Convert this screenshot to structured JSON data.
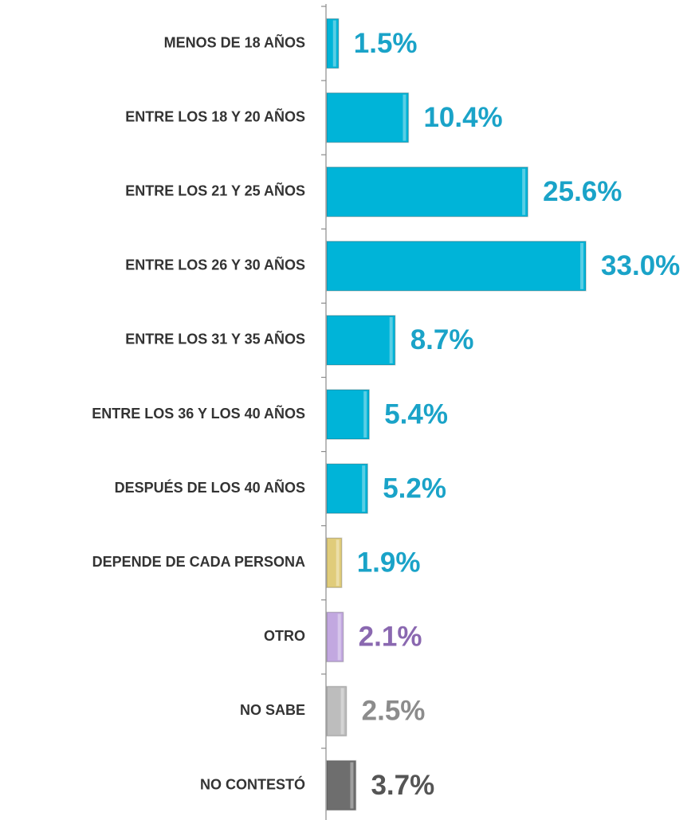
{
  "chart_data": {
    "type": "bar",
    "orientation": "horizontal",
    "categories": [
      "MENOS DE 18 AÑOS",
      "ENTRE LOS 18 Y 20 AÑOS",
      "ENTRE LOS 21 Y 25 AÑOS",
      "ENTRE LOS 26 Y 30 AÑOS",
      "ENTRE LOS 31 Y 35 AÑOS",
      "ENTRE LOS 36 Y LOS 40 AÑOS",
      "DESPUÉS DE LOS 40 AÑOS",
      "DEPENDE DE CADA PERSONA",
      "OTRO",
      "NO SABE",
      "NO CONTESTÓ"
    ],
    "values": [
      1.5,
      10.4,
      25.6,
      33.0,
      8.7,
      5.4,
      5.2,
      1.9,
      2.1,
      2.5,
      3.7
    ],
    "value_labels": [
      "1.5%",
      "10.4%",
      "25.6%",
      "33.0%",
      "8.7%",
      "5.4%",
      "5.2%",
      "1.9%",
      "2.1%",
      "2.5%",
      "3.7%"
    ],
    "colors": [
      "#00b4d8",
      "#00b4d8",
      "#00b4d8",
      "#00b4d8",
      "#00b4d8",
      "#00b4d8",
      "#00b4d8",
      "#e0cc7a",
      "#c2a8e0",
      "#bdbdbd",
      "#6e6e6e"
    ],
    "label_colors": [
      "#1aa3c8",
      "#1aa3c8",
      "#1aa3c8",
      "#1aa3c8",
      "#1aa3c8",
      "#1aa3c8",
      "#1aa3c8",
      "#1aa3c8",
      "#8a68b0",
      "#8c8c8c",
      "#555555"
    ]
  }
}
